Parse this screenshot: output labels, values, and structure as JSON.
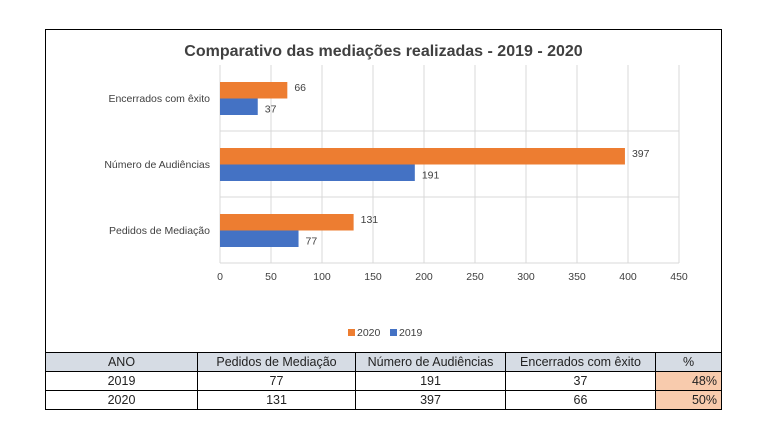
{
  "chart_data": {
    "type": "bar",
    "orientation": "horizontal",
    "title": "Comparativo das mediações realizadas - 2019 - 2020",
    "categories": [
      "Pedidos de Mediação",
      "Número de Audiências",
      "Encerrados com êxito"
    ],
    "series": [
      {
        "name": "2020",
        "color": "#ed7d31",
        "values": [
          131,
          397,
          66
        ]
      },
      {
        "name": "2019",
        "color": "#4472c4",
        "values": [
          77,
          191,
          37
        ]
      }
    ],
    "xlim": [
      0,
      450
    ],
    "xticks": [
      0,
      50,
      100,
      150,
      200,
      250,
      300,
      350,
      400,
      450
    ],
    "grid": true,
    "legend": "bottom"
  },
  "table": {
    "headers": [
      "ANO",
      "Pedidos de Mediação",
      "Número de Audiências",
      "Encerrados com êxito",
      "%"
    ],
    "rows": [
      [
        "2019",
        "77",
        "191",
        "37",
        "48%"
      ],
      [
        "2020",
        "131",
        "397",
        "66",
        "50%"
      ]
    ]
  }
}
